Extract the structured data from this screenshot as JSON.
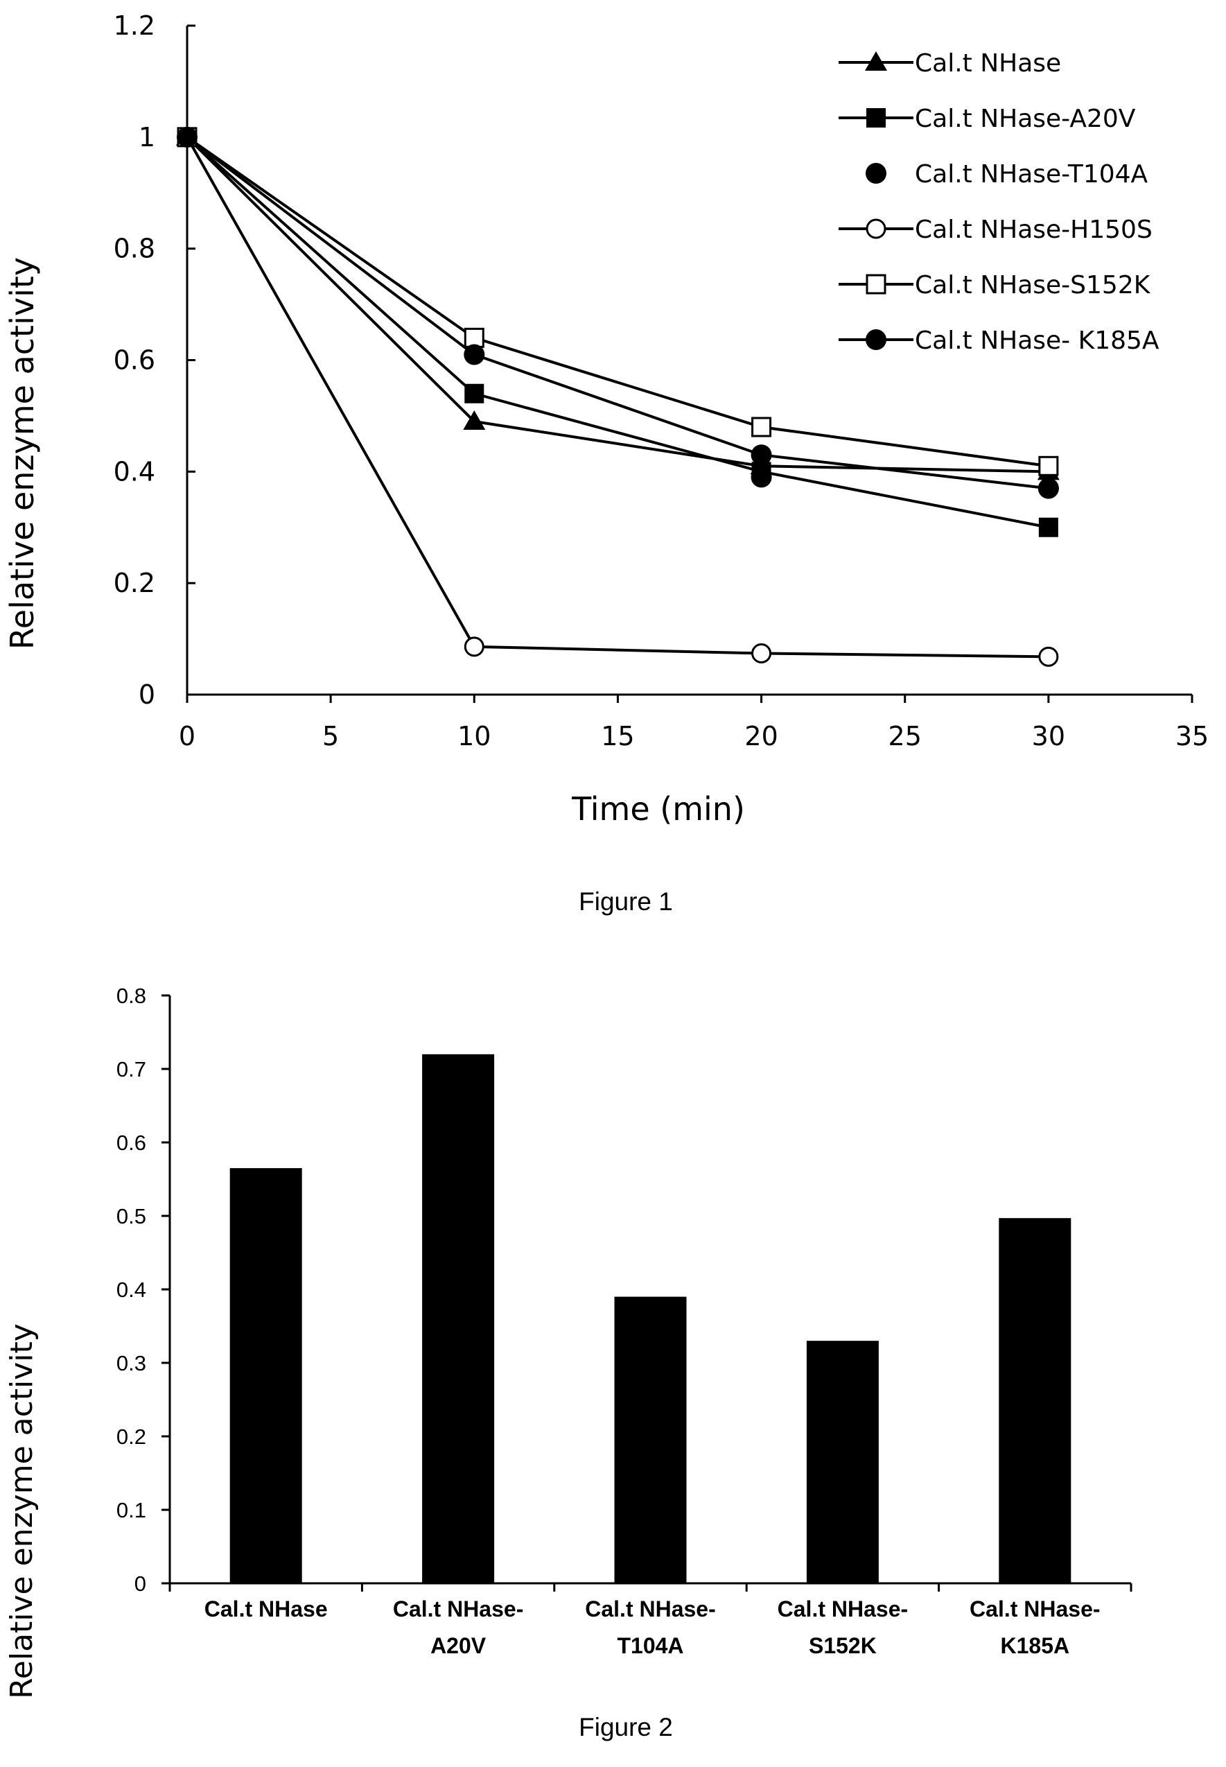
{
  "figure1": {
    "caption": "Figure 1",
    "chart_data": {
      "type": "line",
      "xlabel": "Time (min)",
      "ylabel": "Relative enzyme activity",
      "xlim": [
        0,
        35
      ],
      "ylim": [
        0,
        1.2
      ],
      "x_ticks": [
        "0",
        "5",
        "10",
        "15",
        "20",
        "25",
        "30",
        "35"
      ],
      "y_ticks": [
        "0",
        "0.2",
        "0.4",
        "0.6",
        "0.8",
        "1",
        "1.2"
      ],
      "grid": false,
      "legend_position": "top-right",
      "series": [
        {
          "name": "Cal.t NHase",
          "marker": "triangle",
          "x": [
            0,
            10,
            20,
            30
          ],
          "y": [
            1,
            0.49,
            0.41,
            0.4
          ]
        },
        {
          "name": "Cal.t NHase-A20V",
          "marker": "square-filled",
          "x": [
            0,
            10,
            20,
            30
          ],
          "y": [
            1,
            0.54,
            0.4,
            0.3
          ]
        },
        {
          "name": "Cal.t NHase-T104A",
          "marker": "circle-filled",
          "line": false,
          "x": [
            20,
            30
          ],
          "y": [
            0.39,
            0.37
          ]
        },
        {
          "name": "Cal.t NHase-H150S",
          "marker": "circle-open",
          "x": [
            0,
            10,
            20,
            30
          ],
          "y": [
            1,
            0.086,
            0.074,
            0.068
          ]
        },
        {
          "name": "Cal.t NHase-S152K",
          "marker": "square-open",
          "x": [
            0,
            10,
            20,
            30
          ],
          "y": [
            1,
            0.64,
            0.48,
            0.41
          ]
        },
        {
          "name": "Cal.t NHase- K185A",
          "marker": "circle-filled",
          "x": [
            0,
            10,
            20,
            30
          ],
          "y": [
            1,
            0.61,
            0.43,
            0.37
          ]
        }
      ]
    }
  },
  "figure2": {
    "caption": "Figure 2",
    "chart_data": {
      "type": "bar",
      "ylabel": "Relative enzyme activity",
      "ylim": [
        0,
        0.8
      ],
      "y_ticks": [
        "0",
        "0.1",
        "0.2",
        "0.3",
        "0.4",
        "0.5",
        "0.6",
        "0.7",
        "0.8"
      ],
      "categories": [
        [
          "Cal.t NHase"
        ],
        [
          "Cal.t NHase-",
          "A20V"
        ],
        [
          "Cal.t NHase-",
          "T104A"
        ],
        [
          "Cal.t NHase-",
          "S152K"
        ],
        [
          "Cal.t NHase-",
          "K185A"
        ]
      ],
      "values": [
        0.565,
        0.72,
        0.39,
        0.33,
        0.497
      ],
      "bar_color": "#000000",
      "grid": false
    }
  }
}
